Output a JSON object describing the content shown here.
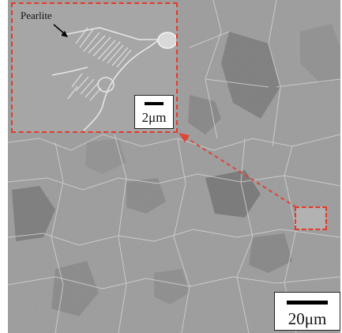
{
  "image": {
    "subject": "SEM micrograph of ferrite grains with pearlite colonies",
    "colors": {
      "annotation": "#e23a2c",
      "background_gray": "#9a9a9a"
    }
  },
  "inset": {
    "label": "Pearlite",
    "scale_bar_text": "2μm"
  },
  "main": {
    "scale_bar_text": "20μm"
  }
}
